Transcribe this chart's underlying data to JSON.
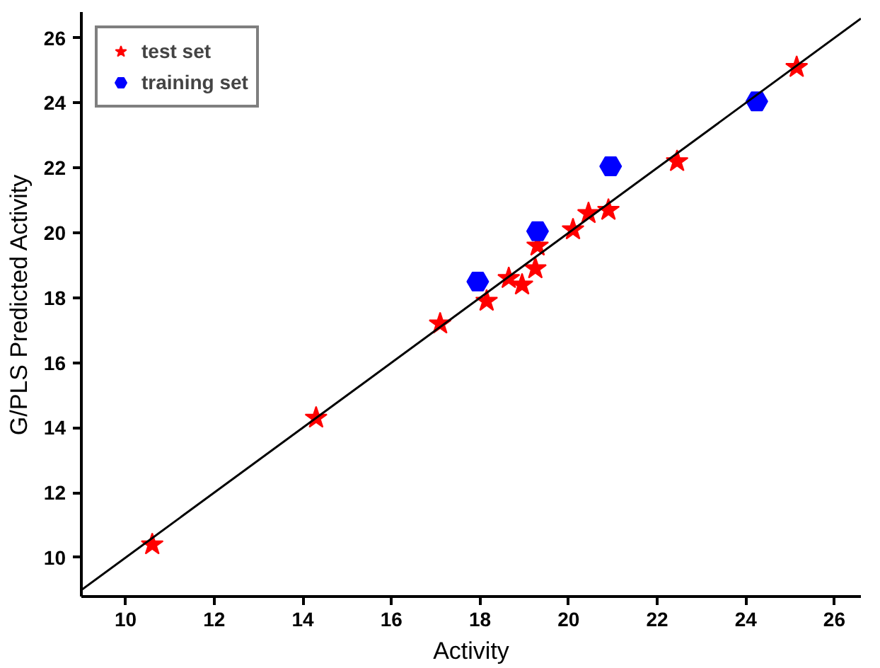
{
  "chart_data": {
    "type": "scatter",
    "xlabel": "Activity",
    "ylabel": "G/PLS Predicted Activity",
    "xlim": [
      9,
      26.6
    ],
    "ylim": [
      8.8,
      26.8
    ],
    "xticks": [
      10,
      12,
      14,
      16,
      18,
      20,
      22,
      24,
      26
    ],
    "yticks": [
      10,
      12,
      14,
      16,
      18,
      20,
      22,
      24,
      26
    ],
    "legend": "top left",
    "grid": false,
    "series": [
      {
        "name": "test set",
        "color": "#ff0000",
        "marker": "star",
        "x": [
          10.6,
          14.3,
          17.1,
          18.15,
          18.65,
          18.95,
          19.25,
          19.3,
          20.1,
          20.45,
          20.9,
          22.45,
          25.15
        ],
        "values": [
          10.4,
          14.3,
          17.2,
          17.9,
          18.6,
          18.4,
          18.9,
          19.6,
          20.1,
          20.6,
          20.7,
          22.2,
          25.1
        ]
      },
      {
        "name": "training set",
        "color": "#0000ff",
        "x": [
          17.95,
          19.3,
          20.95,
          24.25
        ],
        "values": [
          18.5,
          20.05,
          22.05,
          24.05
        ]
      },
      {
        "type": "line",
        "color": "#000000",
        "x": [
          9,
          26.6
        ],
        "values": [
          9,
          26.6
        ]
      }
    ]
  }
}
